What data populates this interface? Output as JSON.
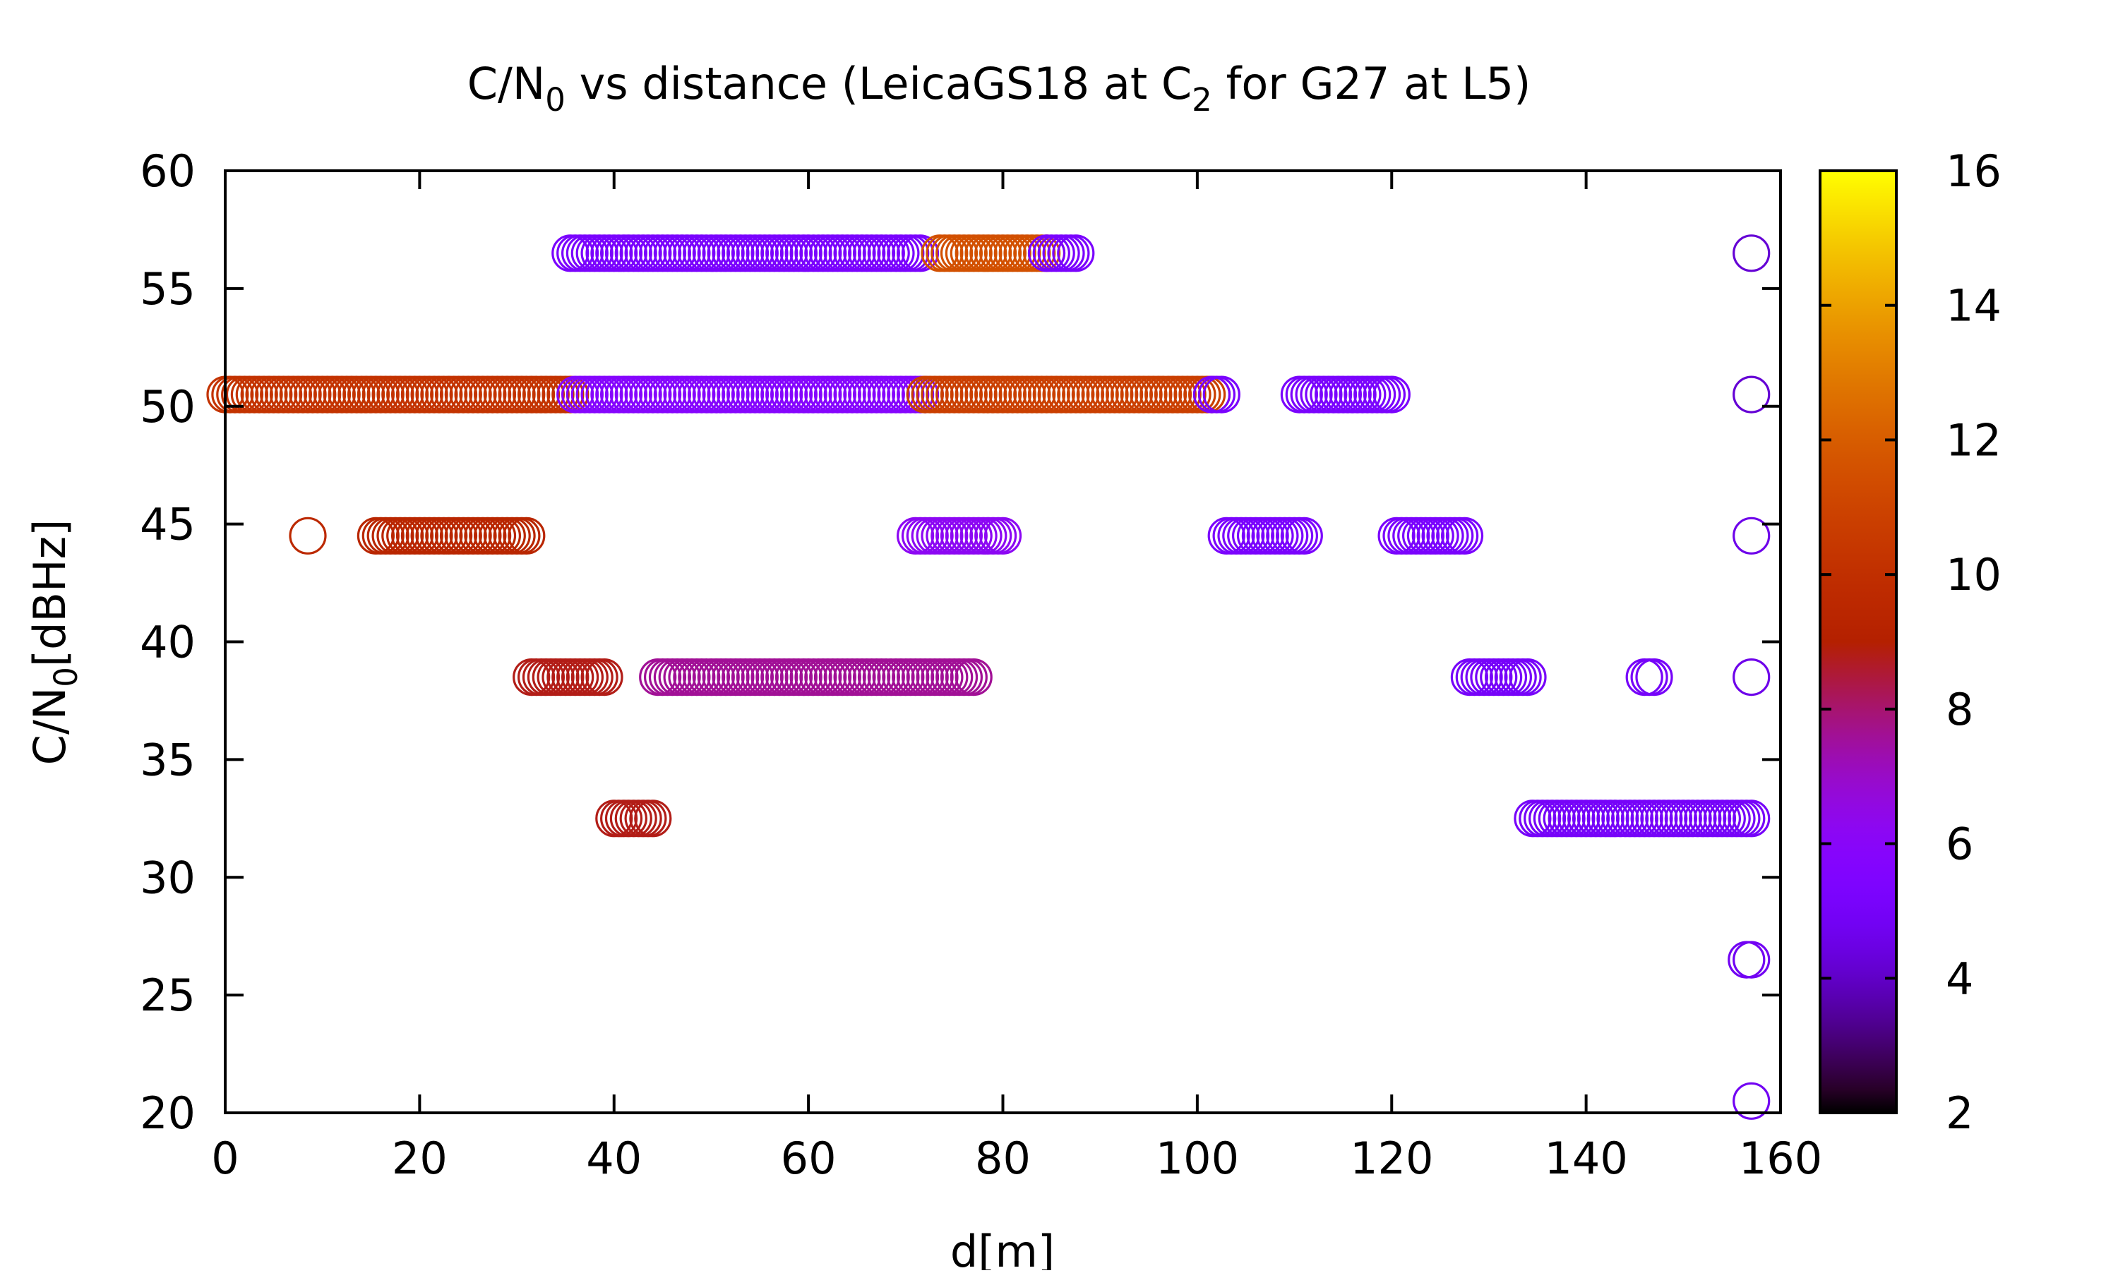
{
  "chart_data": {
    "type": "scatter",
    "title": {
      "parts": [
        {
          "text": "C/N",
          "sub": false
        },
        {
          "text": "0",
          "sub": true
        },
        {
          "text": " vs distance (LeicaGS18 at C",
          "sub": false
        },
        {
          "text": "2",
          "sub": true
        },
        {
          "text": " for G27 at L5)",
          "sub": false
        }
      ]
    },
    "xlabel": "d[m]",
    "ylabel": {
      "parts": [
        {
          "text": "C/N",
          "sub": false
        },
        {
          "text": "0",
          "sub": true
        },
        {
          "text": "[dBHz]",
          "sub": false
        }
      ]
    },
    "xlim": [
      0,
      160
    ],
    "ylim": [
      20,
      60
    ],
    "xticks": [
      0,
      20,
      40,
      60,
      80,
      100,
      120,
      140,
      160
    ],
    "yticks": [
      20,
      25,
      30,
      35,
      40,
      45,
      50,
      55,
      60
    ],
    "colorbar": {
      "range": [
        2,
        16
      ],
      "ticks": [
        2,
        4,
        6,
        8,
        10,
        12,
        14,
        16
      ],
      "palette": "gnuplot-rgbformulae-7-5-15"
    },
    "marker": "open-circle",
    "grid": false,
    "legend": "none",
    "point_runs": [
      {
        "y": 56.5,
        "x_from": 35.5,
        "x_to": 71.5,
        "step": 0.5,
        "color_value": 5.2
      },
      {
        "y": 56.5,
        "x_from": 73.5,
        "x_to": 84.5,
        "step": 0.5,
        "color_value": 11.5
      },
      {
        "y": 56.5,
        "x_from": 84.5,
        "x_to": 87.5,
        "step": 0.5,
        "color_value": 5.2
      },
      {
        "y": 50.5,
        "x_from": 0,
        "x_to": 35.5,
        "step": 0.5,
        "color_value": 10.2
      },
      {
        "y": 50.5,
        "x_from": 36,
        "x_to": 72,
        "step": 0.5,
        "color_value": 5.8
      },
      {
        "y": 50.5,
        "x_from": 72,
        "x_to": 101.5,
        "step": 0.5,
        "color_value": 10.8
      },
      {
        "y": 50.5,
        "x_from": 101.5,
        "x_to": 102.5,
        "step": 0.5,
        "color_value": 5.2
      },
      {
        "y": 50.5,
        "x_from": 110.5,
        "x_to": 120,
        "step": 0.5,
        "color_value": 5.2
      },
      {
        "y": 44.5,
        "x_from": 8.5,
        "x_to": 8.5,
        "step": 0.5,
        "color_value": 9.6
      },
      {
        "y": 44.5,
        "x_from": 15.5,
        "x_to": 31,
        "step": 0.5,
        "color_value": 9.4
      },
      {
        "y": 44.5,
        "x_from": 71,
        "x_to": 80,
        "step": 0.5,
        "color_value": 6.2
      },
      {
        "y": 44.5,
        "x_from": 103,
        "x_to": 111,
        "step": 0.5,
        "color_value": 5.2
      },
      {
        "y": 44.5,
        "x_from": 120.5,
        "x_to": 127.5,
        "step": 0.5,
        "color_value": 5.2
      },
      {
        "y": 38.5,
        "x_from": 31.5,
        "x_to": 39,
        "step": 0.5,
        "color_value": 8.8
      },
      {
        "y": 38.5,
        "x_from": 44.5,
        "x_to": 77,
        "step": 0.5,
        "color_value": 7.6
      },
      {
        "y": 38.5,
        "x_from": 128,
        "x_to": 134,
        "step": 0.5,
        "color_value": 5.0
      },
      {
        "y": 38.5,
        "x_from": 146,
        "x_to": 147,
        "step": 0.5,
        "color_value": 5.0
      },
      {
        "y": 38.5,
        "x_from": 157,
        "x_to": 157,
        "step": 0.5,
        "color_value": 4.6
      },
      {
        "y": 32.5,
        "x_from": 40,
        "x_to": 44,
        "step": 0.5,
        "color_value": 8.8
      },
      {
        "y": 32.5,
        "x_from": 134.5,
        "x_to": 157,
        "step": 0.5,
        "color_value": 5.0
      },
      {
        "y": 56.5,
        "x_from": 157,
        "x_to": 157,
        "step": 0.5,
        "color_value": 4.2
      },
      {
        "y": 50.5,
        "x_from": 157,
        "x_to": 157,
        "step": 0.5,
        "color_value": 4.2
      },
      {
        "y": 44.5,
        "x_from": 157,
        "x_to": 157,
        "step": 0.5,
        "color_value": 4.6
      },
      {
        "y": 26.5,
        "x_from": 156.5,
        "x_to": 157,
        "step": 0.5,
        "color_value": 4.8
      },
      {
        "y": 20.5,
        "x_from": 157,
        "x_to": 157,
        "step": 0.5,
        "color_value": 4.8
      }
    ]
  }
}
